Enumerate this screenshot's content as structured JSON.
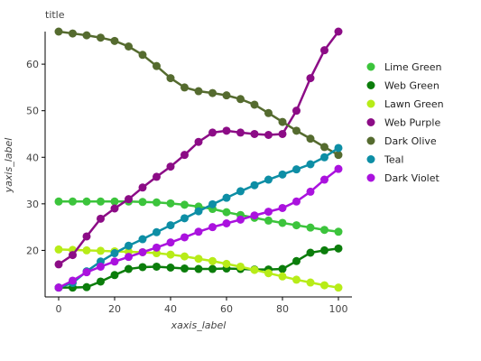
{
  "chart_data": {
    "type": "line",
    "title": "title",
    "xlabel": "xaxis_label",
    "ylabel": "yaxis_label",
    "xlim": [
      0,
      100
    ],
    "ylim": [
      10,
      67
    ],
    "xticks": [
      0,
      20,
      40,
      60,
      80,
      100
    ],
    "yticks": [
      20,
      30,
      40,
      50,
      60
    ],
    "grid": false,
    "legend_position": "right",
    "series": [
      {
        "name": "Lime Green",
        "color": "#3cc43c",
        "x": [
          0,
          5,
          10,
          15,
          20,
          25,
          30,
          35,
          40,
          45,
          50,
          55,
          60,
          65,
          70,
          75,
          80,
          85,
          90,
          95,
          100
        ],
        "y": [
          30.5,
          30.5,
          30.5,
          30.5,
          30.5,
          30.5,
          30.4,
          30.3,
          30.1,
          29.8,
          29.4,
          28.9,
          28.2,
          27.6,
          27.0,
          26.4,
          25.9,
          25.4,
          24.9,
          24.4,
          24.0
        ]
      },
      {
        "name": "Web Green",
        "color": "#0b7d0b",
        "x": [
          0,
          5,
          10,
          15,
          20,
          25,
          30,
          35,
          40,
          45,
          50,
          55,
          60,
          65,
          70,
          75,
          80,
          85,
          90,
          95,
          100
        ],
        "y": [
          12.0,
          12.0,
          12.1,
          13.3,
          14.7,
          16.0,
          16.4,
          16.5,
          16.3,
          16.1,
          16.0,
          16.0,
          16.1,
          16.0,
          15.9,
          15.9,
          16.0,
          17.7,
          19.5,
          20.0,
          20.4
        ]
      },
      {
        "name": "Lawn Green",
        "color": "#b7ec18",
        "x": [
          0,
          5,
          10,
          15,
          20,
          25,
          30,
          35,
          40,
          45,
          50,
          55,
          60,
          65,
          70,
          75,
          80,
          85,
          90,
          95,
          100
        ],
        "y": [
          20.2,
          20.1,
          20.0,
          19.9,
          19.8,
          19.7,
          19.6,
          19.4,
          19.1,
          18.7,
          18.2,
          17.7,
          17.1,
          16.5,
          15.8,
          15.1,
          14.4,
          13.7,
          13.1,
          12.5,
          12.0
        ]
      },
      {
        "name": "Web Purple",
        "color": "#8c0c86",
        "x": [
          0,
          5,
          10,
          15,
          20,
          25,
          30,
          35,
          40,
          45,
          50,
          55,
          60,
          65,
          70,
          75,
          80,
          85,
          90,
          95,
          100
        ],
        "y": [
          17.0,
          19.0,
          23.0,
          26.8,
          29.0,
          31.0,
          33.5,
          35.8,
          38.0,
          40.5,
          43.3,
          45.3,
          45.7,
          45.3,
          45.0,
          44.8,
          45.0,
          50.0,
          57.0,
          63.0,
          67.0
        ]
      },
      {
        "name": "Dark Olive",
        "color": "#556b2f",
        "x": [
          0,
          5,
          10,
          15,
          20,
          25,
          30,
          35,
          40,
          45,
          50,
          55,
          60,
          65,
          70,
          75,
          80,
          85,
          90,
          95,
          100
        ],
        "y": [
          67.0,
          66.6,
          66.2,
          65.7,
          65.0,
          63.8,
          62.0,
          59.6,
          57.0,
          55.0,
          54.2,
          53.8,
          53.3,
          52.5,
          51.3,
          49.5,
          47.6,
          45.7,
          44.0,
          42.2,
          40.5
        ]
      },
      {
        "name": "Teal",
        "color": "#0d8ea5",
        "x": [
          0,
          5,
          10,
          15,
          20,
          25,
          30,
          35,
          40,
          45,
          50,
          55,
          60,
          65,
          70,
          75,
          80,
          85,
          90,
          95,
          100
        ],
        "y": [
          12.0,
          13.0,
          15.5,
          17.6,
          19.4,
          21.0,
          22.4,
          23.9,
          25.4,
          26.9,
          28.4,
          29.9,
          31.3,
          32.7,
          34.0,
          35.2,
          36.3,
          37.4,
          38.5,
          40.0,
          42.0
        ]
      },
      {
        "name": "Dark Violet",
        "color": "#aa12de",
        "x": [
          0,
          5,
          10,
          15,
          20,
          25,
          30,
          35,
          40,
          45,
          50,
          55,
          60,
          65,
          70,
          75,
          80,
          85,
          90,
          95,
          100
        ],
        "y": [
          12.0,
          13.5,
          15.3,
          16.5,
          17.6,
          18.6,
          19.6,
          20.6,
          21.7,
          22.8,
          24.0,
          25.0,
          25.8,
          26.6,
          27.5,
          28.3,
          29.1,
          30.5,
          32.6,
          35.2,
          37.5
        ]
      }
    ]
  }
}
